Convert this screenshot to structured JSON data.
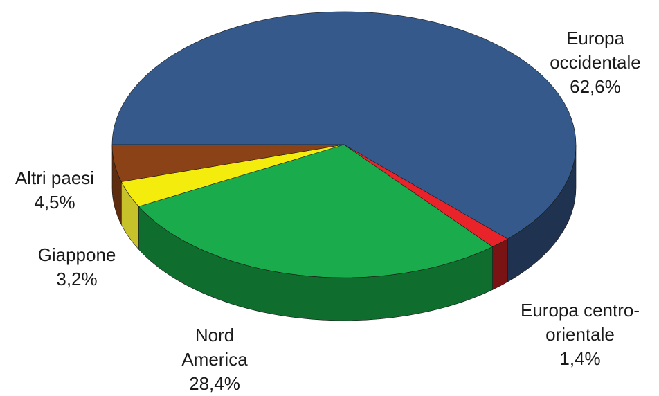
{
  "chart_data": {
    "type": "pie",
    "title": "",
    "three_d": true,
    "legend": "none",
    "slices": [
      {
        "label_lines": [
          "Europa",
          "occidentale"
        ],
        "percent_text": "62,6%",
        "value": 62.6,
        "color": "#34598a",
        "side_color": "#1f3350"
      },
      {
        "label_lines": [
          "Europa centro-",
          "orientale"
        ],
        "percent_text": "1,4%",
        "value": 1.4,
        "color": "#e8232a",
        "side_color": "#7a1414"
      },
      {
        "label_lines": [
          "Nord",
          "America"
        ],
        "percent_text": "28,4%",
        "value": 28.4,
        "color": "#1aac4c",
        "side_color": "#0f6e2e"
      },
      {
        "label_lines": [
          "Giappone"
        ],
        "percent_text": "3,2%",
        "value": 3.2,
        "color": "#f4ec0c",
        "side_color": "#c7c12a"
      },
      {
        "label_lines": [
          "Altri paesi"
        ],
        "percent_text": "4,5%",
        "value": 4.5,
        "color": "#8b4217",
        "side_color": "#5e2c0e"
      }
    ]
  }
}
